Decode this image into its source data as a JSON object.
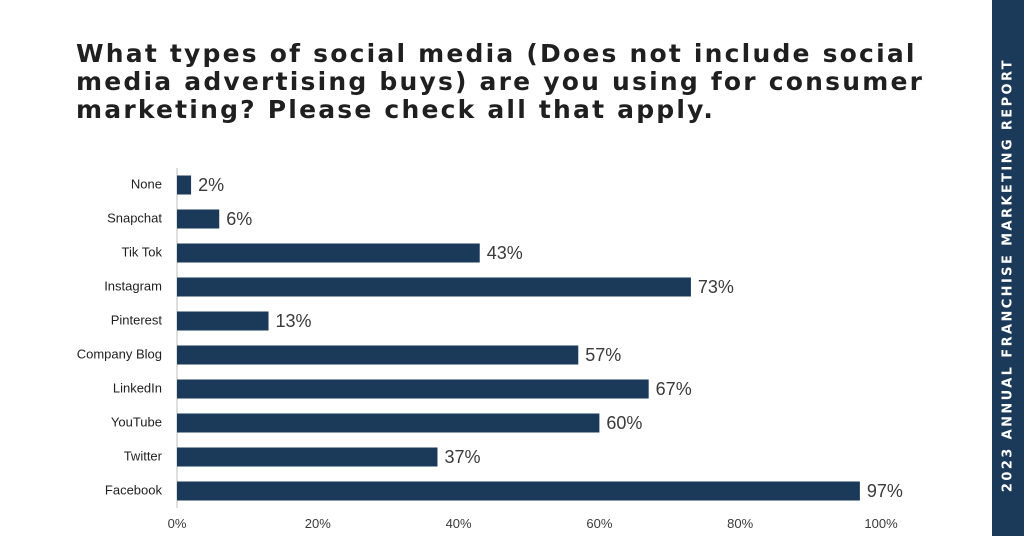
{
  "page": {
    "side_label": "2023 ANNUAL FRANCHISE MARKETING REPORT"
  },
  "colors": {
    "bar": "#1b3a5a",
    "side_band": "#1b3a5a",
    "axis": "#bfbfbf"
  },
  "chart_data": {
    "type": "bar",
    "orientation": "horizontal",
    "title": "What types of social media (Does not include social media advertising buys) are you using for consumer marketing? Please check all that apply.",
    "categories": [
      "None",
      "Snapchat",
      "Tik Tok",
      "Instagram",
      "Pinterest",
      "Company Blog",
      "LinkedIn",
      "YouTube",
      "Twitter",
      "Facebook"
    ],
    "values": [
      2,
      6,
      43,
      73,
      13,
      57,
      67,
      60,
      37,
      97
    ],
    "value_labels": [
      "2%",
      "6%",
      "43%",
      "73%",
      "13%",
      "57%",
      "67%",
      "60%",
      "37%",
      "97%"
    ],
    "xlim": [
      0,
      100
    ],
    "x_ticks": [
      0,
      20,
      40,
      60,
      80,
      100
    ],
    "x_tick_labels": [
      "0%",
      "20%",
      "40%",
      "60%",
      "80%",
      "100%"
    ],
    "xlabel": "",
    "ylabel": "",
    "grid": false,
    "legend": "none"
  }
}
